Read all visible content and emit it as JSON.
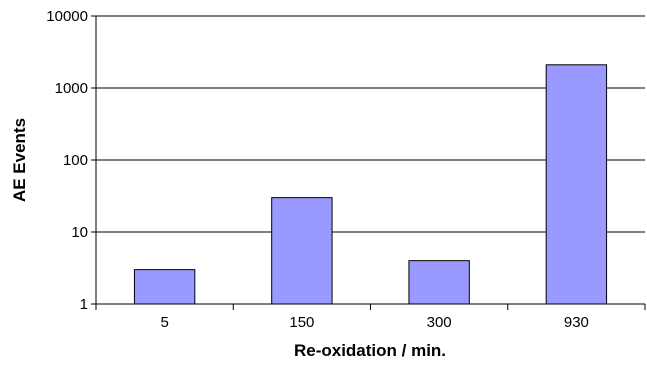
{
  "chart_data": {
    "type": "bar",
    "title": "",
    "xlabel": "Re-oxidation / min.",
    "ylabel": "AE Events",
    "categories": [
      "5",
      "150",
      "300",
      "930"
    ],
    "values": [
      3,
      30,
      4,
      2100
    ],
    "y_scale": "log",
    "ylim": [
      1,
      10000
    ],
    "y_tick_labels": [
      "1",
      "10",
      "100",
      "1000",
      "10000"
    ],
    "grid": "horizontal major",
    "legend": "none",
    "bar_color": "#9999ff",
    "bar_edge_color": "#000000"
  }
}
